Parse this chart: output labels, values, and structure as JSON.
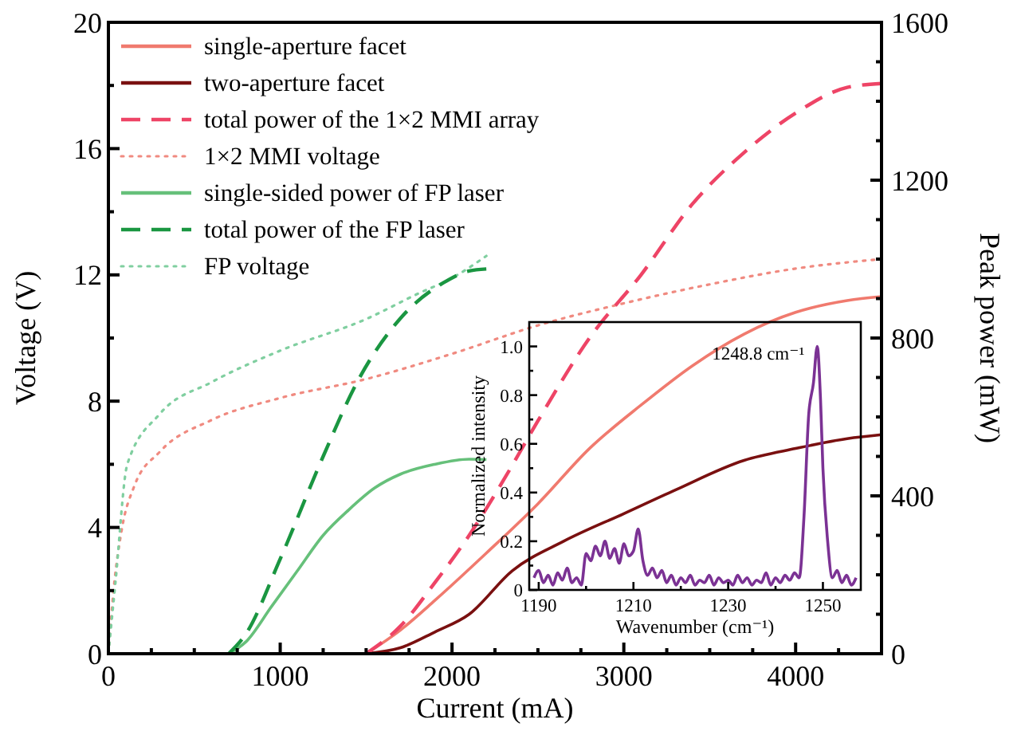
{
  "chart_data": [
    {
      "type": "line",
      "xlabel": "Current (mA)",
      "ylabel": "Voltage (V)",
      "y2label": "Peak power (mW)",
      "xlim": [
        0,
        4500
      ],
      "ylim": [
        0,
        20
      ],
      "y2lim": [
        0,
        1600
      ],
      "xticks": [
        0,
        {
          "value": 250,
          "label": null
        },
        {
          "value": 500,
          "label": null
        },
        {
          "value": 750,
          "label": null
        },
        1000,
        {
          "value": 1250,
          "label": null
        },
        {
          "value": 1500,
          "label": null
        },
        {
          "value": 1750,
          "label": null
        },
        2000,
        {
          "value": 2250,
          "label": null
        },
        {
          "value": 2500,
          "label": null
        },
        {
          "value": 2750,
          "label": null
        },
        3000,
        {
          "value": 3250,
          "label": null
        },
        {
          "value": 3500,
          "label": null
        },
        {
          "value": 3750,
          "label": null
        },
        4000,
        {
          "value": 4250,
          "label": null
        }
      ],
      "yticks": [
        0,
        {
          "value": 2,
          "label": null
        },
        4,
        {
          "value": 6,
          "label": null
        },
        8,
        {
          "value": 10,
          "label": null
        },
        12,
        {
          "value": 14,
          "label": null
        },
        16,
        {
          "value": 18,
          "label": null
        },
        20
      ],
      "y2ticks": [
        0,
        {
          "value": 100,
          "label": null
        },
        {
          "value": 200,
          "label": null
        },
        {
          "value": 300,
          "label": null
        },
        400,
        {
          "value": 500,
          "label": null
        },
        {
          "value": 600,
          "label": null
        },
        {
          "value": 700,
          "label": null
        },
        800,
        {
          "value": 900,
          "label": null
        },
        {
          "value": 1000,
          "label": null
        },
        {
          "value": 1100,
          "label": null
        },
        1200,
        {
          "value": 1300,
          "label": null
        },
        {
          "value": 1400,
          "label": null
        },
        {
          "value": 1500,
          "label": null
        },
        1600
      ],
      "grid": false,
      "legend": "top left",
      "marker": "none",
      "series": [
        {
          "name": "single-aperture facet",
          "color": "#f07a6e",
          "axis": "y2",
          "line_style": "solid",
          "x": [
            1500,
            1700,
            1900,
            2200,
            2500,
            2800,
            3100,
            3400,
            3700,
            4000,
            4300,
            4500
          ],
          "values": [
            0,
            60,
            135,
            255,
            380,
            520,
            630,
            730,
            810,
            865,
            895,
            905
          ]
        },
        {
          "name": "two-aperture facet",
          "color": "#7a1010",
          "axis": "y2",
          "line_style": "solid",
          "x": [
            1500,
            1700,
            1900,
            2100,
            2350,
            2650,
            3000,
            3300,
            3700,
            4000,
            4300,
            4500
          ],
          "values": [
            0,
            15,
            55,
            100,
            210,
            285,
            355,
            415,
            490,
            520,
            545,
            555
          ]
        },
        {
          "name": "total power of the 1×2 MMI array",
          "color": "#ee4466",
          "axis": "y2",
          "line_style": "dashed",
          "x": [
            1500,
            1700,
            1900,
            2100,
            2300,
            2500,
            2800,
            3100,
            3400,
            3700,
            4000,
            4300,
            4500
          ],
          "values": [
            0,
            70,
            180,
            300,
            440,
            590,
            800,
            960,
            1140,
            1270,
            1370,
            1435,
            1445
          ]
        },
        {
          "name": "1×2 MMI voltage",
          "color": "#f08a80",
          "axis": "y",
          "line_style": "dotted",
          "x": [
            0,
            30,
            80,
            150,
            300,
            600,
            1000,
            1500,
            2000,
            2500,
            3000,
            3500,
            4000,
            4500
          ],
          "values": [
            0,
            2,
            4,
            5.3,
            6.4,
            7.4,
            8.1,
            8.7,
            9.5,
            10.4,
            11.1,
            11.7,
            12.2,
            12.5
          ]
        },
        {
          "name": "single-sided power of FP laser",
          "color": "#66c07a",
          "axis": "y2",
          "line_style": "solid",
          "x": [
            700,
            800,
            950,
            1100,
            1250,
            1400,
            1550,
            1700,
            1900,
            2100,
            2200
          ],
          "values": [
            0,
            30,
            120,
            210,
            300,
            365,
            420,
            455,
            480,
            493,
            492
          ]
        },
        {
          "name": "total power of the FP laser",
          "color": "#1a9641",
          "axis": "y2",
          "line_style": "dashed",
          "x": [
            700,
            800,
            1000,
            1250,
            1450,
            1700,
            1950,
            2100,
            2200
          ],
          "values": [
            0,
            50,
            240,
            500,
            690,
            850,
            940,
            970,
            975
          ]
        },
        {
          "name": "FP voltage",
          "color": "#80cfa0",
          "axis": "y",
          "line_style": "dotted",
          "x": [
            0,
            40,
            110,
            300,
            600,
            1000,
            1500,
            1800,
            2000,
            2200
          ],
          "values": [
            0,
            2.2,
            6,
            7.6,
            8.6,
            9.6,
            10.6,
            11.4,
            11.9,
            12.6
          ]
        }
      ]
    },
    {
      "type": "line",
      "xlabel": "Wavenumber (cm⁻¹)",
      "ylabel": "Normalized intensity",
      "xlim": [
        1188,
        1258
      ],
      "ylim": [
        0,
        1.1
      ],
      "xticks": [
        1190,
        {
          "value": 1200,
          "label": null
        },
        1210,
        {
          "value": 1220,
          "label": null
        },
        1230,
        {
          "value": 1240,
          "label": null
        },
        1250
      ],
      "yticks": [
        0,
        {
          "value": 0.1,
          "label": null
        },
        0.2,
        {
          "value": 0.3,
          "label": null
        },
        0.4,
        {
          "value": 0.5,
          "label": null
        },
        0.6,
        {
          "value": 0.7,
          "label": null
        },
        0.8,
        {
          "value": 0.9,
          "label": null
        },
        {
          "value": 1,
          "label": "1.0"
        }
      ],
      "grid": false,
      "legend": false,
      "marker": "none",
      "annotations": [
        {
          "text": "1248.8 cm⁻¹",
          "x": 1248.8,
          "y": 1.0
        }
      ],
      "series": [
        {
          "color": "#7b3294",
          "line_style": "solid",
          "x": [
            1189,
            1190,
            1191,
            1192,
            1193,
            1194,
            1195,
            1196,
            1197,
            1198,
            1199,
            1200,
            1201,
            1202,
            1203,
            1204,
            1205,
            1206,
            1207,
            1208,
            1209,
            1210,
            1211,
            1212,
            1213,
            1214,
            1215,
            1216,
            1217,
            1218,
            1219,
            1220,
            1221,
            1222,
            1223,
            1224,
            1225,
            1226,
            1227,
            1228,
            1229,
            1230,
            1231,
            1232,
            1233,
            1234,
            1235,
            1236,
            1237,
            1238,
            1239,
            1240,
            1241,
            1242,
            1243,
            1244,
            1245,
            1246,
            1247,
            1248,
            1248.8,
            1249.5,
            1250,
            1251,
            1252,
            1253,
            1254,
            1255,
            1256,
            1257
          ],
          "values": [
            0.05,
            0.08,
            0.03,
            0.06,
            0.02,
            0.07,
            0.04,
            0.09,
            0.03,
            0.05,
            0.02,
            0.15,
            0.12,
            0.18,
            0.14,
            0.2,
            0.13,
            0.17,
            0.11,
            0.19,
            0.14,
            0.16,
            0.25,
            0.12,
            0.06,
            0.09,
            0.05,
            0.08,
            0.03,
            0.06,
            0.02,
            0.05,
            0.03,
            0.06,
            0.02,
            0.04,
            0.03,
            0.06,
            0.02,
            0.05,
            0.03,
            0.04,
            0.02,
            0.06,
            0.03,
            0.05,
            0.02,
            0.04,
            0.03,
            0.07,
            0.02,
            0.05,
            0.03,
            0.06,
            0.04,
            0.07,
            0.05,
            0.3,
            0.72,
            0.85,
            1.0,
            0.78,
            0.5,
            0.2,
            0.05,
            0.08,
            0.03,
            0.06,
            0.02,
            0.05
          ]
        }
      ]
    }
  ]
}
